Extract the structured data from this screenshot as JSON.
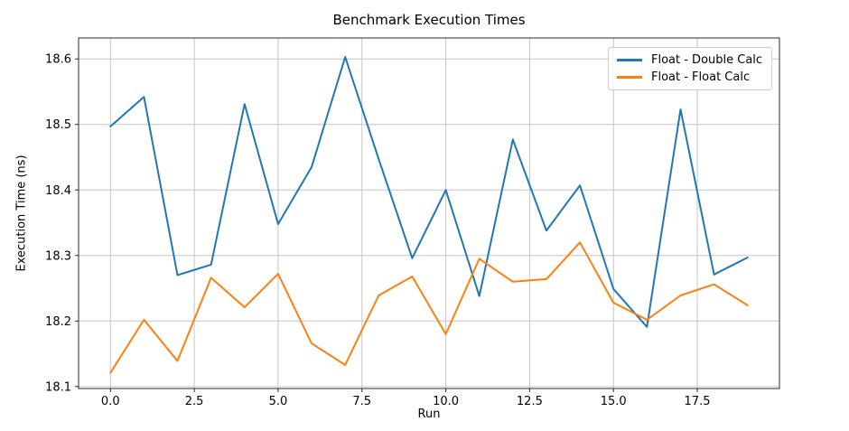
{
  "chart_data": {
    "type": "line",
    "title": "Benchmark Execution Times",
    "xlabel": "Run",
    "ylabel": "Execution Time (ns)",
    "x": [
      0,
      1,
      2,
      3,
      4,
      5,
      6,
      7,
      8,
      9,
      10,
      11,
      12,
      13,
      14,
      15,
      16,
      17,
      18,
      19
    ],
    "series": [
      {
        "name": "Float - Double Calc",
        "color": "#1f77b4",
        "values": [
          18.497,
          18.542,
          18.27,
          18.286,
          18.531,
          18.348,
          18.435,
          18.603,
          18.447,
          18.296,
          18.4,
          18.238,
          18.477,
          18.338,
          18.407,
          18.249,
          18.191,
          18.523,
          18.271,
          18.297
        ]
      },
      {
        "name": "Float - Float Calc",
        "color": "#ff7f0e",
        "values": [
          18.121,
          18.202,
          18.139,
          18.266,
          18.221,
          18.272,
          18.166,
          18.133,
          18.239,
          18.268,
          18.18,
          18.295,
          18.26,
          18.264,
          18.32,
          18.228,
          18.202,
          18.239,
          18.256,
          18.224
        ]
      }
    ],
    "xlim": [
      -0.95,
      19.95
    ],
    "ylim": [
      18.097,
      18.632
    ],
    "xticks": {
      "values": [
        0,
        2.5,
        5,
        7.5,
        10,
        12.5,
        15,
        17.5
      ],
      "labels": [
        "0.0",
        "2.5",
        "5.0",
        "7.5",
        "10.0",
        "12.5",
        "15.0",
        "17.5"
      ]
    },
    "yticks": {
      "values": [
        18.1,
        18.2,
        18.3,
        18.4,
        18.5,
        18.6
      ],
      "labels": [
        "18.1",
        "18.2",
        "18.3",
        "18.4",
        "18.5",
        "18.6"
      ]
    },
    "grid": true,
    "legend_position": "upper right",
    "grid_color": "#c6c6c6",
    "spine_color": "#2b2b2b",
    "text_color": "#000000",
    "line_width": 2
  }
}
